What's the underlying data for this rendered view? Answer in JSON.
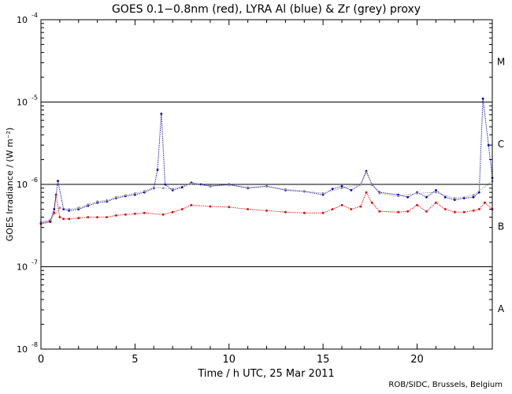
{
  "chart_data": {
    "type": "scatter",
    "title": "GOES 0.1−0.8nm (red), LYRA Al (blue) & Zr (grey) proxy",
    "xlabel": "Time / h UTC, 25 Mar 2011",
    "ylabel": "GOES Irradiance / (W m⁻²)",
    "xlim": [
      0,
      24
    ],
    "ylim_exponent": [
      -8,
      -4
    ],
    "y_scale": "log",
    "x_ticks": [
      0,
      5,
      10,
      15,
      20
    ],
    "x_tick_labels": [
      "0",
      "5",
      "10",
      "15",
      "20"
    ],
    "y_ticks": [
      {
        "base": "10",
        "exp": "-8"
      },
      {
        "base": "10",
        "exp": "-7"
      },
      {
        "base": "10",
        "exp": "-6"
      },
      {
        "base": "10",
        "exp": "-5"
      },
      {
        "base": "10",
        "exp": "-4"
      }
    ],
    "flare_classes": [
      {
        "label": "A",
        "at_exponent": -7.5
      },
      {
        "label": "B",
        "at_exponent": -6.5
      },
      {
        "label": "C",
        "at_exponent": -5.5
      },
      {
        "label": "M",
        "at_exponent": -4.5
      }
    ],
    "class_lines_exponent": [
      -7,
      -6,
      -5
    ],
    "series": [
      {
        "name": "GOES 0.1-0.8nm",
        "color": "#e00000",
        "x": [
          0,
          0.5,
          0.7,
          0.8,
          1.0,
          1.2,
          1.5,
          2.0,
          2.5,
          3.0,
          3.5,
          4.0,
          4.5,
          5.0,
          5.5,
          6.5,
          7.0,
          7.5,
          8.0,
          9.0,
          10.0,
          11.0,
          12.0,
          13.0,
          14.0,
          15.0,
          15.5,
          16.0,
          16.5,
          17.0,
          17.3,
          17.6,
          18.0,
          19.0,
          19.5,
          20.0,
          20.5,
          21.0,
          21.5,
          22.0,
          22.5,
          23.0,
          23.3,
          23.6,
          24.0
        ],
        "values": [
          3.3e-07,
          3.5e-07,
          4.5e-07,
          7.5e-07,
          4e-07,
          3.8e-07,
          3.8e-07,
          3.9e-07,
          4e-07,
          4e-07,
          4e-07,
          4.2e-07,
          4.3e-07,
          4.4e-07,
          4.5e-07,
          4.3e-07,
          4.6e-07,
          5e-07,
          5.6e-07,
          5.4e-07,
          5.3e-07,
          5e-07,
          4.8e-07,
          4.6e-07,
          4.5e-07,
          4.5e-07,
          5e-07,
          5.6e-07,
          5e-07,
          5.4e-07,
          8e-07,
          6e-07,
          4.7e-07,
          4.6e-07,
          4.7e-07,
          5.6e-07,
          4.7e-07,
          6e-07,
          5e-07,
          4.6e-07,
          4.6e-07,
          4.8e-07,
          5e-07,
          6e-07,
          5e-07
        ]
      },
      {
        "name": "LYRA Al proxy",
        "color": "#0000c0",
        "x": [
          0,
          0.5,
          0.7,
          0.9,
          1.2,
          1.5,
          2.0,
          2.5,
          3.0,
          3.5,
          4.0,
          4.5,
          5.0,
          5.5,
          6.0,
          6.2,
          6.4,
          6.6,
          7.0,
          7.5,
          8.0,
          8.5,
          9.0,
          10.0,
          11.0,
          12.0,
          13.0,
          14.0,
          15.0,
          15.5,
          16.0,
          16.5,
          17.0,
          17.3,
          17.6,
          18.0,
          19.0,
          19.5,
          20.0,
          20.5,
          21.0,
          21.5,
          22.0,
          22.5,
          23.0,
          23.3,
          23.5,
          23.8,
          24.0
        ],
        "values": [
          3.4e-07,
          3.6e-07,
          5e-07,
          1.1e-06,
          5e-07,
          4.8e-07,
          5e-07,
          5.5e-07,
          6e-07,
          6.2e-07,
          6.8e-07,
          7.2e-07,
          7.5e-07,
          8e-07,
          9e-07,
          1.5e-06,
          7.2e-06,
          1e-06,
          8.5e-07,
          9.2e-07,
          1.05e-06,
          1e-06,
          9.5e-07,
          1e-06,
          9e-07,
          9.5e-07,
          8.5e-07,
          8.2e-07,
          7.5e-07,
          8.8e-07,
          9.5e-07,
          8.5e-07,
          1e-06,
          1.45e-06,
          1e-06,
          8e-07,
          7.5e-07,
          7e-07,
          8e-07,
          7e-07,
          8.5e-07,
          7e-07,
          6.5e-07,
          6.8e-07,
          7e-07,
          8e-07,
          1.1e-05,
          3e-06,
          1.2e-06
        ]
      },
      {
        "name": "LYRA Zr proxy",
        "color": "#909090",
        "x": [
          0,
          0.5,
          1.0,
          1.5,
          2.0,
          2.5,
          3.0,
          3.5,
          4.0,
          4.5,
          5.0,
          5.5,
          6.0,
          6.5,
          7.0,
          8.0,
          9.0,
          10.0,
          11.0,
          12.0,
          13.0,
          14.0,
          15.0,
          16.0,
          17.0,
          17.3,
          17.6,
          18.0,
          19.0,
          20.0,
          21.0,
          22.0,
          23.0,
          24.0
        ],
        "values": [
          3.5e-07,
          3.7e-07,
          5.2e-07,
          5e-07,
          5.2e-07,
          5.7e-07,
          6.2e-07,
          6.4e-07,
          7e-07,
          7.4e-07,
          7.8e-07,
          8.3e-07,
          9.2e-07,
          9e-07,
          8.8e-07,
          1.02e-06,
          9.6e-07,
          9.8e-07,
          9.2e-07,
          9.4e-07,
          8.7e-07,
          8.3e-07,
          7.8e-07,
          9e-07,
          1e-06,
          1.4e-06,
          9.8e-07,
          7.8e-07,
          7.2e-07,
          7.8e-07,
          8e-07,
          6.8e-07,
          7.4e-07,
          1.1e-06
        ]
      }
    ]
  },
  "credit": "ROB/SIDC, Brussels, Belgium"
}
